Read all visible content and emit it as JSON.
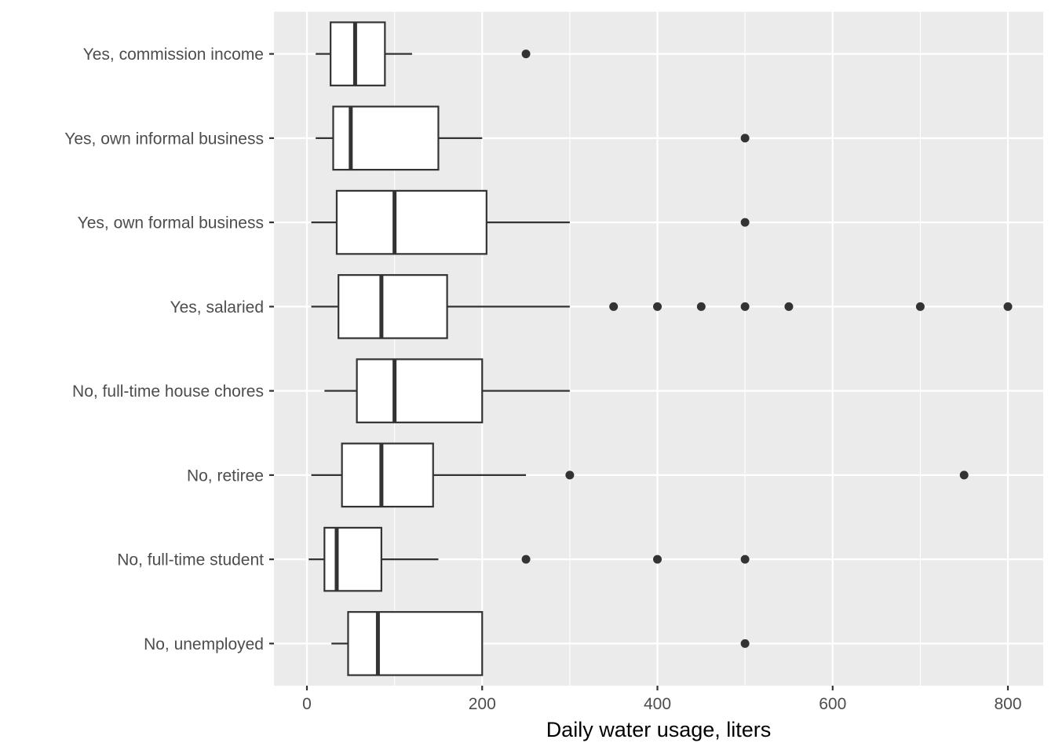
{
  "chart_data": {
    "type": "boxplot",
    "orientation": "horizontal",
    "xlabel": "Daily water usage, liters",
    "ylabel": "",
    "xlim": [
      -20,
      840
    ],
    "xticks": [
      0,
      200,
      400,
      600,
      800
    ],
    "grid": true,
    "background": "#ebebeb",
    "grid_color": "#ffffff",
    "box_fill": "#ffffff",
    "line_color": "#333333",
    "categories": [
      "Yes, commission income",
      "Yes, own informal business",
      "Yes, own formal business",
      "Yes, salaried",
      "No, full-time house chores",
      "No, retiree",
      "No, full-time student",
      "No, unemployed"
    ],
    "boxes": [
      {
        "category": "Yes, commission income",
        "whisker_low": 10,
        "q1": 27,
        "median": 55,
        "q3": 89,
        "whisker_high": 120,
        "outliers": [
          250
        ]
      },
      {
        "category": "Yes, own informal business",
        "whisker_low": 10,
        "q1": 30,
        "median": 50,
        "q3": 150,
        "whisker_high": 200,
        "outliers": [
          500
        ]
      },
      {
        "category": "Yes, own formal business",
        "whisker_low": 5,
        "q1": 34,
        "median": 100,
        "q3": 205,
        "whisker_high": 300,
        "outliers": [
          500
        ]
      },
      {
        "category": "Yes, salaried",
        "whisker_low": 5,
        "q1": 36,
        "median": 85,
        "q3": 160,
        "whisker_high": 300,
        "outliers": [
          350,
          400,
          450,
          500,
          550,
          700,
          800
        ]
      },
      {
        "category": "No, full-time house chores",
        "whisker_low": 20,
        "q1": 57,
        "median": 100,
        "q3": 200,
        "whisker_high": 300,
        "outliers": []
      },
      {
        "category": "No, retiree",
        "whisker_low": 5,
        "q1": 40,
        "median": 85,
        "q3": 144,
        "whisker_high": 250,
        "outliers": [
          300,
          750
        ]
      },
      {
        "category": "No, full-time student",
        "whisker_low": 2,
        "q1": 20,
        "median": 34,
        "q3": 85,
        "whisker_high": 150,
        "outliers": [
          250,
          400,
          500
        ]
      },
      {
        "category": "No, unemployed",
        "whisker_low": 28,
        "q1": 47,
        "median": 81,
        "q3": 200,
        "whisker_high": 200,
        "outliers": [
          500
        ]
      }
    ]
  }
}
